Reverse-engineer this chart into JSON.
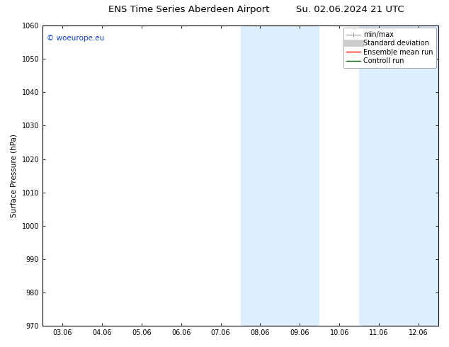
{
  "title_left": "ENS Time Series Aberdeen Airport",
  "title_right": "Su. 02.06.2024 21 UTC",
  "ylabel": "Surface Pressure (hPa)",
  "ylim": [
    970,
    1060
  ],
  "yticks": [
    970,
    980,
    990,
    1000,
    1010,
    1020,
    1030,
    1040,
    1050,
    1060
  ],
  "xtick_labels": [
    "03.06",
    "04.06",
    "05.06",
    "06.06",
    "07.06",
    "08.06",
    "09.06",
    "10.06",
    "11.06",
    "12.06"
  ],
  "xtick_positions": [
    0,
    1,
    2,
    3,
    4,
    5,
    6,
    7,
    8,
    9
  ],
  "xlim": [
    -0.5,
    9.5
  ],
  "shaded_regions": [
    {
      "x_start": 4.5,
      "x_end": 6.5,
      "color": "#ddeeff"
    },
    {
      "x_start": 7.5,
      "x_end": 9.5,
      "color": "#ddeeff"
    }
  ],
  "watermark_text": "© woeurope.eu",
  "watermark_color": "#1144bb",
  "legend_entries": [
    {
      "label": "min/max",
      "color": "#aaaaaa",
      "lw": 1.0
    },
    {
      "label": "Standard deviation",
      "color": "#cccccc",
      "lw": 6
    },
    {
      "label": "Ensemble mean run",
      "color": "red",
      "lw": 1.0
    },
    {
      "label": "Controll run",
      "color": "green",
      "lw": 1.0
    }
  ],
  "bg_color": "#ffffff",
  "spine_color": "#000000",
  "font_size_title": 9.5,
  "font_size_axis": 7.5,
  "font_size_tick": 7,
  "font_size_legend": 7,
  "font_size_watermark": 7.5
}
